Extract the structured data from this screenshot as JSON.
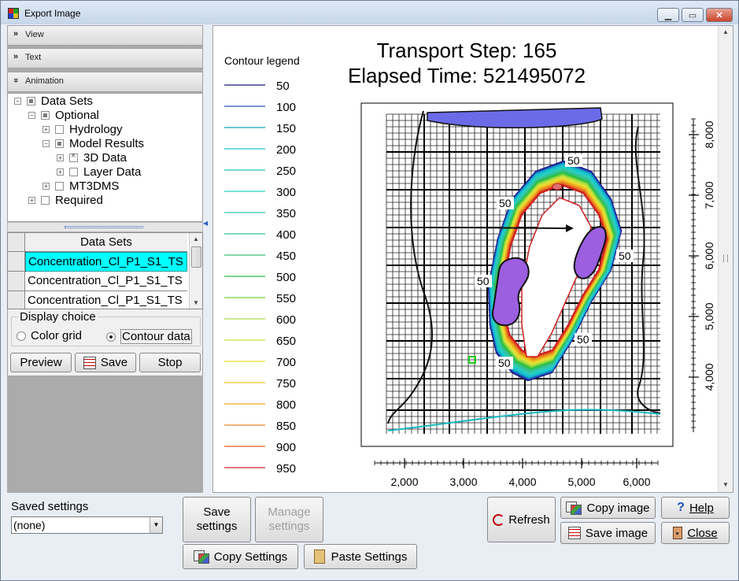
{
  "window": {
    "title": "Export Image"
  },
  "sections": {
    "view": "View",
    "text": "Text",
    "animation": "Animation"
  },
  "tree": {
    "data_sets": "Data Sets",
    "optional": "Optional",
    "hydrology": "Hydrology",
    "model_results": "Model Results",
    "three_d_data": "3D Data",
    "layer_data": "Layer Data",
    "mt3dms": "MT3DMS",
    "required": "Required"
  },
  "grid": {
    "header": "Data Sets",
    "rows": [
      "Concentration_Cl_P1_S1_TS",
      "Concentration_Cl_P1_S1_TS",
      "Concentration_Cl_P1_S1_TS"
    ]
  },
  "display": {
    "legend": "Display choice",
    "color_grid": "Color grid",
    "contour_data": "Contour data",
    "selected": "contour_data"
  },
  "actions": {
    "preview": "Preview",
    "save": "Save",
    "stop": "Stop"
  },
  "plot": {
    "title_line1": "Transport Step: 165",
    "title_line2": "Elapsed Time: 521495072",
    "legend_title": "Contour legend",
    "legend": [
      {
        "label": "50",
        "color": "#1a1a80"
      },
      {
        "label": "100",
        "color": "#1f55c8"
      },
      {
        "label": "150",
        "color": "#12a8b8"
      },
      {
        "label": "200",
        "color": "#18c0d8"
      },
      {
        "label": "250",
        "color": "#20c8c8"
      },
      {
        "label": "300",
        "color": "#28d0c0"
      },
      {
        "label": "350",
        "color": "#30c8a8"
      },
      {
        "label": "400",
        "color": "#38c090"
      },
      {
        "label": "450",
        "color": "#30c070"
      },
      {
        "label": "500",
        "color": "#28c040"
      },
      {
        "label": "550",
        "color": "#70d040"
      },
      {
        "label": "600",
        "color": "#a8dc40"
      },
      {
        "label": "650",
        "color": "#d0e040"
      },
      {
        "label": "700",
        "color": "#e8e030"
      },
      {
        "label": "750",
        "color": "#f0c828"
      },
      {
        "label": "800",
        "color": "#f0a820"
      },
      {
        "label": "850",
        "color": "#e88820"
      },
      {
        "label": "900",
        "color": "#e06020"
      },
      {
        "label": "950",
        "color": "#d02020"
      }
    ],
    "x_ticks": [
      "2,000",
      "3,000",
      "4,000",
      "5,000",
      "6,000"
    ],
    "y_ticks": [
      "4,000",
      "5,000",
      "6,000",
      "7,000",
      "8,000"
    ],
    "contour_labels": [
      "50",
      "50",
      "50",
      "50",
      "50",
      "50"
    ]
  },
  "bottom": {
    "saved_settings_label": "Saved settings",
    "saved_settings_value": "(none)",
    "save_settings": "Save settings",
    "manage_settings": "Manage settings",
    "copy_settings": "Copy Settings",
    "paste_settings": "Paste Settings",
    "refresh": "Refresh",
    "copy_image": "Copy image",
    "save_image": "Save image",
    "help": "Help",
    "close": "Close"
  },
  "colors": {
    "selected_row": "#00ffff",
    "plume_core": "#9b5fe0",
    "top_bar": "#6b6be8"
  }
}
